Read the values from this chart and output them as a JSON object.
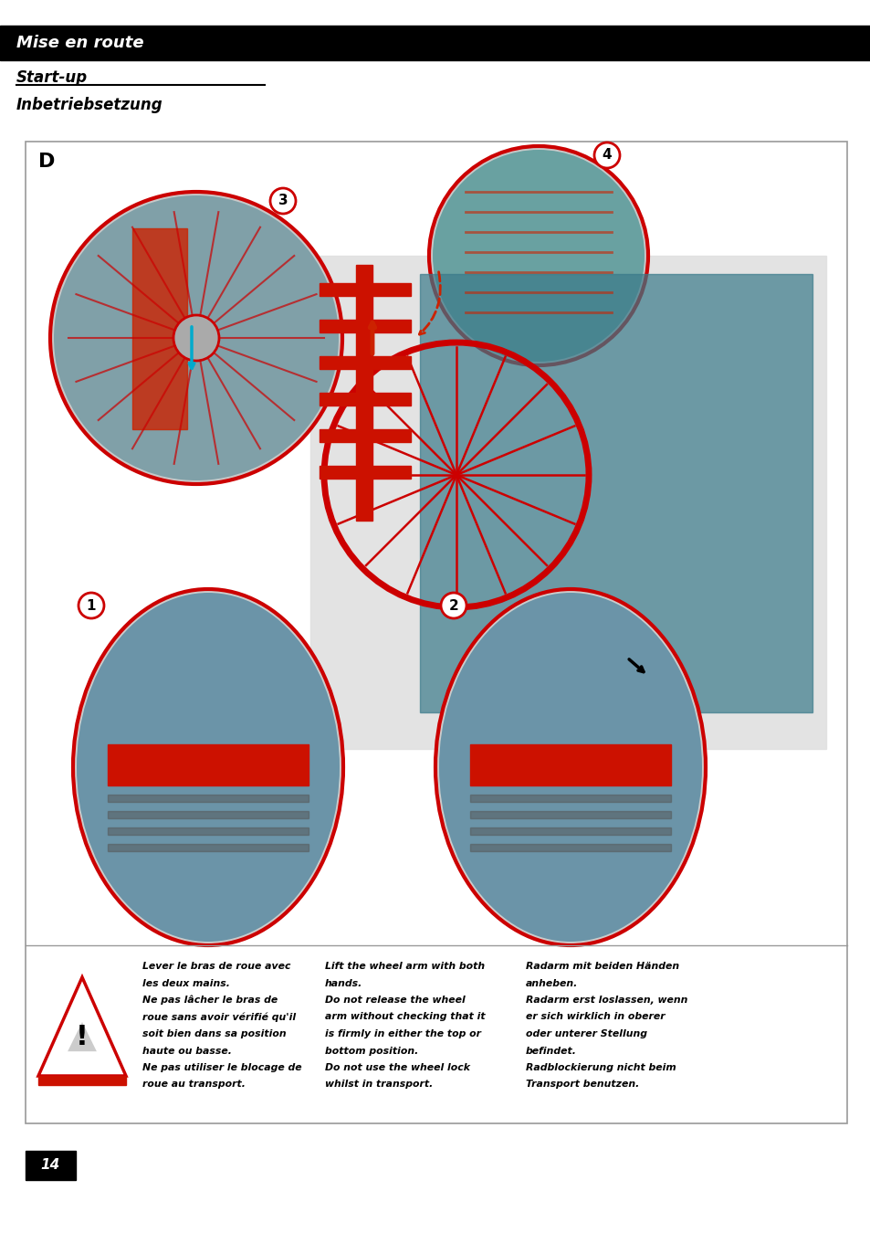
{
  "page_bg": "#ffffff",
  "header_bg": "#000000",
  "header_text": "Mise en route",
  "header_text_color": "#ffffff",
  "subtitle1": "Start-up",
  "subtitle2": "Inbetriebsetzung",
  "subtitle_color": "#000000",
  "page_number": "14",
  "page_number_bg": "#000000",
  "page_number_color": "#ffffff",
  "label_D": "D",
  "label_1": "1",
  "label_2": "2",
  "label_3": "3",
  "label_4": "4",
  "circle_border_color": "#cc0000",
  "circle_label_border": "#cc0000",
  "text_col1_lines": [
    "Lever le bras de roue avec",
    "les deux mains.",
    "Ne pas lâcher le bras de",
    "roue sans avoir vérifié qu'il",
    "soit bien dans sa position",
    "haute ou basse.",
    "Ne pas utiliser le blocage de",
    "roue au transport."
  ],
  "text_col2_lines": [
    "Lift the wheel arm with both",
    "hands.",
    "Do not release the wheel",
    "arm without checking that it",
    "is firmly in either the top or",
    "bottom position.",
    "Do not use the wheel lock",
    "whilst in transport."
  ],
  "text_col3_lines": [
    "Radarm mit beiden Händen",
    "anheben.",
    "Radarm erst loslassen, wenn",
    "er sich wirklich in oberer",
    "oder unterer Stellung",
    "befindet.",
    "Radblockierung nicht beim",
    "Transport benutzen."
  ],
  "main_box_border": "#999999"
}
